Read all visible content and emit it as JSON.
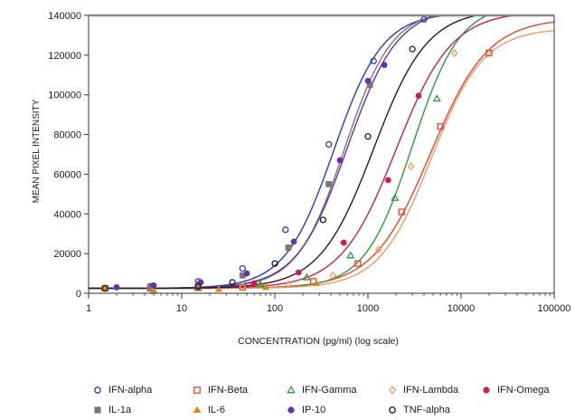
{
  "chart_data": {
    "type": "scatter",
    "title": "",
    "xlabel": "CONCENTRATION (pg/ml) (log scale)",
    "ylabel": "MEAN PIXEL INTENSITY",
    "xscale": "log",
    "xlim": [
      1,
      100000
    ],
    "ylim": [
      0,
      140000
    ],
    "xticks": [
      "1",
      "10",
      "100",
      "1000",
      "10000",
      "100000"
    ],
    "yticks": [
      "0",
      "20000",
      "40000",
      "60000",
      "80000",
      "100000",
      "120000",
      "140000"
    ],
    "grid": false,
    "legend_position": "bottom",
    "series": [
      {
        "name": "IFN-alpha",
        "color": "#2a3bb5",
        "marker": "circle-open",
        "x": [
          1.5,
          4.6,
          15,
          45,
          130,
          380,
          1150,
          4000
        ],
        "y": [
          2500,
          3500,
          6000,
          12500,
          32000,
          75000,
          117000,
          138000
        ],
        "curve": {
          "bottom": 2500,
          "top": 141500,
          "ec50": 430,
          "hill": 1.65
        }
      },
      {
        "name": "IFN-Beta",
        "color": "#e0452c",
        "marker": "square-open",
        "x": [
          1.5,
          4.6,
          15,
          45,
          260,
          780,
          2300,
          6000,
          20000
        ],
        "y": [
          2500,
          2600,
          2800,
          3000,
          6000,
          15000,
          41000,
          84000,
          121000
        ],
        "curve": {
          "bottom": 2500,
          "top": 138500,
          "ec50": 4700,
          "hill": 1.4
        }
      },
      {
        "name": "IFN-Gamma",
        "color": "#2e9a3e",
        "marker": "triangle-open",
        "x": [
          1.5,
          15,
          70,
          220,
          650,
          1950,
          5500
        ],
        "y": [
          2500,
          2800,
          4500,
          8000,
          19000,
          48000,
          98000
        ],
        "curve": {
          "bottom": 2500,
          "top": 146000,
          "ec50": 3000,
          "hill": 1.7
        }
      },
      {
        "name": "IFN-Lambda",
        "color": "#f29a5c",
        "marker": "diamond-open",
        "x": [
          1.5,
          4.6,
          15,
          45,
          140,
          420,
          1300,
          2900,
          8500
        ],
        "y": [
          2500,
          2600,
          2800,
          3200,
          4500,
          9000,
          22000,
          64000,
          121000
        ],
        "curve": {
          "bottom": 2500,
          "top": 133500,
          "ec50": 4800,
          "hill": 1.55
        }
      },
      {
        "name": "IFN-Omega",
        "color": "#c81e5a",
        "marker": "circle-filled",
        "x": [
          1.5,
          15,
          60,
          180,
          550,
          1650,
          3500
        ],
        "y": [
          2500,
          3000,
          5000,
          10500,
          25500,
          57000,
          99500
        ],
        "curve": {
          "bottom": 2500,
          "top": 142000,
          "ec50": 2000,
          "hill": 1.45
        }
      },
      {
        "name": "IL-1a",
        "color": "#777777",
        "marker": "square-filled",
        "x": [
          1.5,
          4.6,
          15,
          45,
          140,
          380,
          1050
        ],
        "y": [
          2500,
          3000,
          4500,
          9000,
          23000,
          55000,
          105000
        ],
        "curve": {
          "bottom": 2500,
          "top": 143000,
          "ec50": 560,
          "hill": 1.7
        }
      },
      {
        "name": "IL-6",
        "color": "#d98a1c",
        "marker": "triangle-filled",
        "x": [
          1.5,
          5,
          25,
          80,
          280
        ],
        "y": [
          2500,
          1500,
          2000,
          3000,
          5000
        ],
        "curve": null
      },
      {
        "name": "IP-10",
        "color": "#6b2fa6",
        "marker": "circle-filled",
        "x": [
          2,
          5,
          16,
          50,
          160,
          500,
          1000,
          1500
        ],
        "y": [
          3000,
          4000,
          5500,
          10000,
          26000,
          67000,
          107000,
          115000
        ],
        "curve": {
          "bottom": 2500,
          "top": 144000,
          "ec50": 600,
          "hill": 1.6
        }
      },
      {
        "name": "TNF-alpha",
        "color": "#1f1f1f",
        "marker": "circle-open",
        "x": [
          1.5,
          15,
          35,
          100,
          330,
          1000,
          3000
        ],
        "y": [
          2500,
          3500,
          5500,
          15000,
          37000,
          79000,
          123000
        ],
        "curve": {
          "bottom": 2500,
          "top": 143000,
          "ec50": 1150,
          "hill": 1.5
        }
      }
    ]
  },
  "legend": {
    "rows": [
      [
        "IFN-alpha",
        "IFN-Beta",
        "IFN-Gamma",
        "IFN-Lambda",
        "IFN-Omega"
      ],
      [
        "IL-1a",
        "IL-6",
        "IP-10",
        "TNF-alpha"
      ]
    ]
  }
}
